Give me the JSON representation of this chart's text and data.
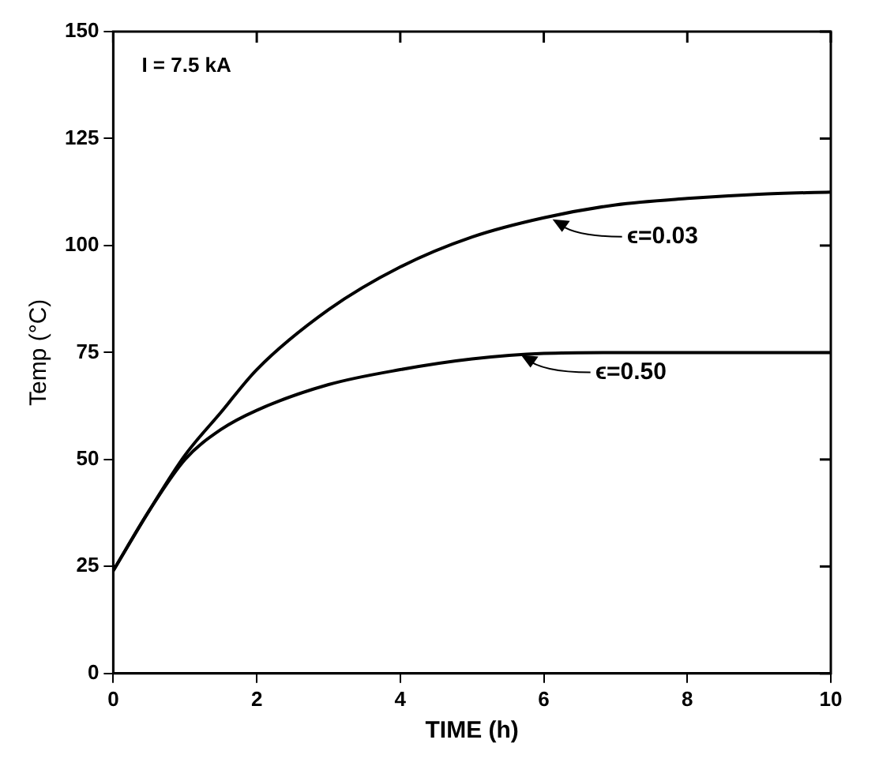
{
  "chart_data": {
    "type": "line",
    "xlabel": "TIME (h)",
    "ylabel": "Temp (°C)",
    "xlim": [
      0,
      10
    ],
    "xticks": [
      0,
      2,
      4,
      6,
      8,
      10
    ],
    "ylim": [
      0,
      150
    ],
    "yticks": [
      0,
      25,
      50,
      75,
      100,
      125,
      150
    ],
    "grid": false,
    "legend": false,
    "marker": "none",
    "line_style": "solid",
    "series": [
      {
        "color": "#000000",
        "x": [
          0,
          0.5,
          1,
          1.5,
          2,
          3,
          4,
          5,
          6,
          7,
          8,
          9,
          10
        ],
        "values": [
          24,
          38,
          51,
          61,
          71,
          85,
          95,
          102,
          106.5,
          109.5,
          111,
          112,
          112.5
        ]
      },
      {
        "color": "#000000",
        "x": [
          0,
          0.5,
          1,
          1.5,
          2,
          3,
          4,
          5,
          6,
          7,
          8,
          9,
          10
        ],
        "values": [
          24,
          38,
          50,
          57,
          61.5,
          67.5,
          71,
          73.5,
          74.8,
          75,
          75,
          75,
          75
        ]
      }
    ],
    "annotations": [
      "I = 7.5 kA",
      {
        "text": "ϵ=0.03",
        "x": 6.1,
        "y": 106.5
      },
      {
        "text": "ϵ=0.50",
        "x": 5.66,
        "y": 74.8
      }
    ]
  }
}
